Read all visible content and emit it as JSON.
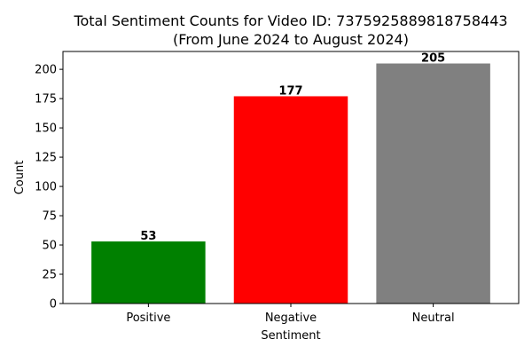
{
  "chart_data": {
    "type": "bar",
    "title": "Total Sentiment Counts for Video ID: 7375925889818758443",
    "subtitle": "(From June 2024 to August 2024)",
    "xlabel": "Sentiment",
    "ylabel": "Count",
    "categories": [
      "Positive",
      "Negative",
      "Neutral"
    ],
    "values": [
      53,
      177,
      205
    ],
    "data_labels": [
      "53",
      "177",
      "205"
    ],
    "colors": [
      "#008000",
      "#ff0000",
      "#808080"
    ],
    "ylim": [
      0,
      215.25
    ],
    "yticks": [
      0,
      25,
      50,
      75,
      100,
      125,
      150,
      175,
      200
    ],
    "ytick_labels": [
      "0",
      "25",
      "50",
      "75",
      "100",
      "125",
      "150",
      "175",
      "200"
    ],
    "grid": false,
    "legend": "none"
  }
}
